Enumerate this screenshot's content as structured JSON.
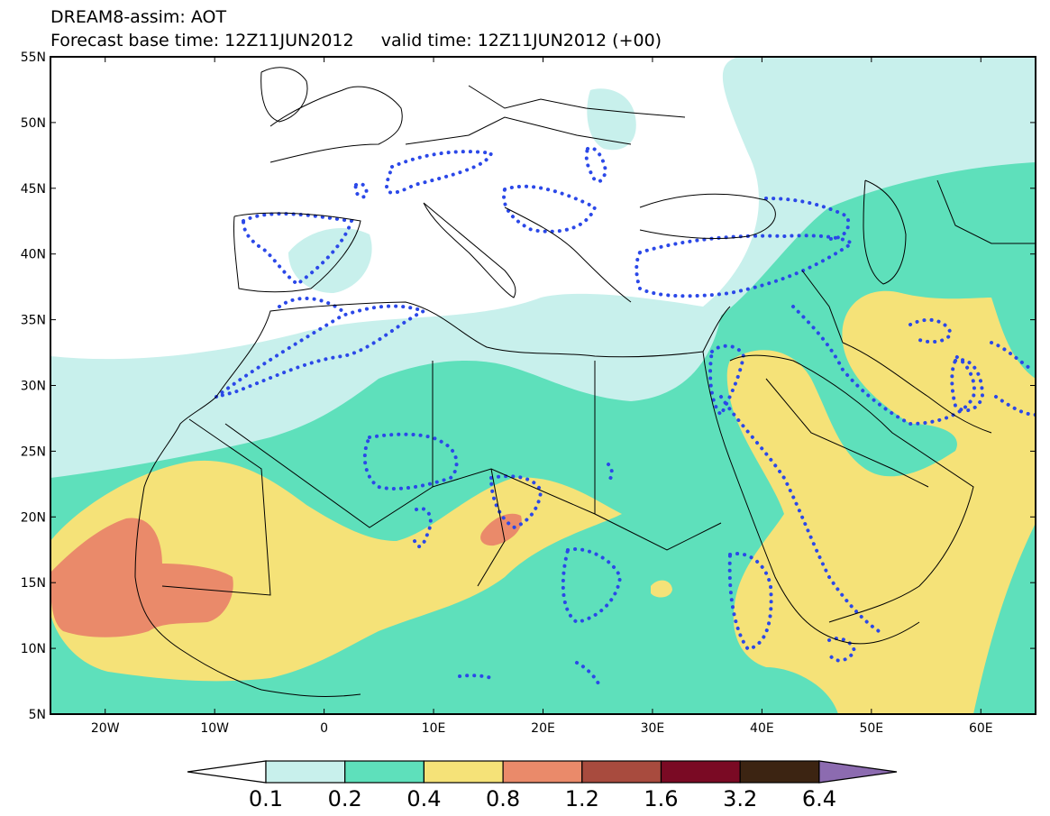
{
  "header": {
    "title_line1": "DREAM8-assim: AOT",
    "title_line2": "Forecast base time: 12Z11JUN2012     valid time: 12Z11JUN2012 (+00)"
  },
  "axes": {
    "lat_labels": [
      "55N",
      "50N",
      "45N",
      "40N",
      "35N",
      "30N",
      "25N",
      "20N",
      "15N",
      "10N",
      "5N"
    ],
    "lon_labels": [
      "20W",
      "10W",
      "0",
      "10E",
      "20E",
      "30E",
      "40E",
      "50E",
      "60E"
    ],
    "lon_range": [
      -25,
      65
    ],
    "lat_range": [
      5,
      55
    ]
  },
  "colorbar": {
    "colors": [
      "#c8f0ec",
      "#5ee0bb",
      "#f5e278",
      "#ea8a6a",
      "#a84b3e",
      "#7a0a24",
      "#3c2412",
      "#8c6bb0"
    ],
    "labels": [
      "0.1",
      "0.2",
      "0.4",
      "0.8",
      "1.2",
      "1.6",
      "3.2",
      "6.4"
    ]
  },
  "colors": {
    "aot_0_1": "#c8f0ec",
    "aot_0_2": "#5ee0bb",
    "aot_0_4": "#f5e278",
    "aot_0_8": "#ea8a6a",
    "dotted_contour": "#2b48e8"
  }
}
